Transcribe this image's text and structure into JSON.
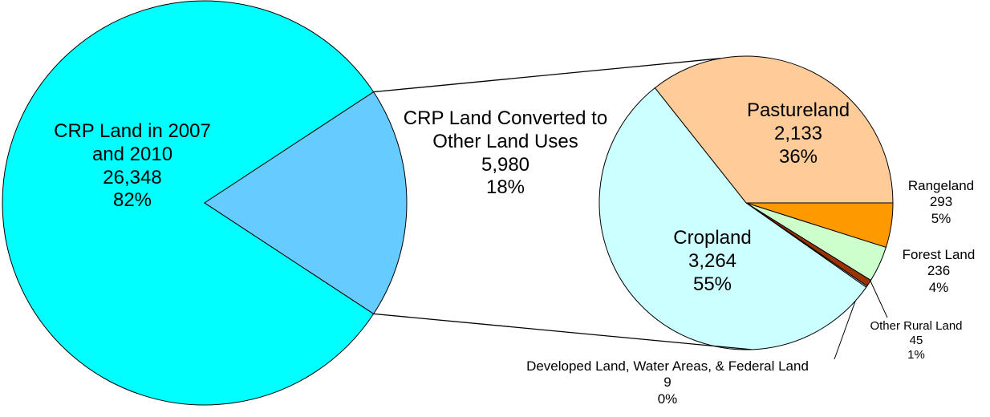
{
  "chart_data": [
    {
      "type": "pie",
      "categories": [
        "CRP Land in 2007 and 2010",
        "CRP Land Converted to Other Land Uses"
      ],
      "values": [
        26348,
        5980
      ],
      "value_labels": [
        "26,348",
        "5,980"
      ],
      "percent_labels": [
        "82%",
        "18%"
      ],
      "colors": [
        "#00ffff",
        "#66ccff"
      ]
    },
    {
      "type": "pie",
      "categories": [
        "Pastureland",
        "Rangeland",
        "Forest Land",
        "Other Rural Land",
        "Developed Land, Water Areas, & Federal Land",
        "Cropland"
      ],
      "values": [
        2133,
        293,
        236,
        45,
        9,
        3264
      ],
      "value_labels": [
        "2,133",
        "293",
        "236",
        "45",
        "9",
        "3,264"
      ],
      "percent_labels": [
        "36%",
        "5%",
        "4%",
        "1%",
        "0%",
        "55%"
      ],
      "colors": [
        "#ffcc99",
        "#ff9900",
        "#ccffcc",
        "#993300",
        "#ffffcc",
        "#ccffff"
      ]
    }
  ]
}
